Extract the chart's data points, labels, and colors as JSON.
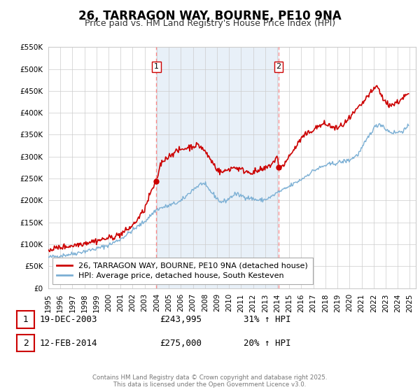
{
  "title": "26, TARRAGON WAY, BOURNE, PE10 9NA",
  "subtitle": "Price paid vs. HM Land Registry's House Price Index (HPI)",
  "ylim": [
    0,
    550000
  ],
  "xlim_start": 1995.0,
  "xlim_end": 2025.5,
  "yticks": [
    0,
    50000,
    100000,
    150000,
    200000,
    250000,
    300000,
    350000,
    400000,
    450000,
    500000,
    550000
  ],
  "ytick_labels": [
    "£0",
    "£50K",
    "£100K",
    "£150K",
    "£200K",
    "£250K",
    "£300K",
    "£350K",
    "£400K",
    "£450K",
    "£500K",
    "£550K"
  ],
  "xticks": [
    1995,
    1996,
    1997,
    1998,
    1999,
    2000,
    2001,
    2002,
    2003,
    2004,
    2005,
    2006,
    2007,
    2008,
    2009,
    2010,
    2011,
    2012,
    2013,
    2014,
    2015,
    2016,
    2017,
    2018,
    2019,
    2020,
    2021,
    2022,
    2023,
    2024,
    2025
  ],
  "sale1_x": 2003.97,
  "sale1_y": 243995,
  "sale1_label": "1",
  "sale1_date": "19-DEC-2003",
  "sale1_price": "£243,995",
  "sale1_hpi": "31% ↑ HPI",
  "sale2_x": 2014.12,
  "sale2_y": 275000,
  "sale2_label": "2",
  "sale2_date": "12-FEB-2014",
  "sale2_price": "£275,000",
  "sale2_hpi": "20% ↑ HPI",
  "line1_color": "#cc0000",
  "line2_color": "#7bafd4",
  "shading_color": "#ddeeff",
  "vline_color": "#ff8888",
  "grid_color": "#cccccc",
  "background_color": "#ffffff",
  "legend1_label": "26, TARRAGON WAY, BOURNE, PE10 9NA (detached house)",
  "legend2_label": "HPI: Average price, detached house, South Kesteven",
  "footnote": "Contains HM Land Registry data © Crown copyright and database right 2025.\nThis data is licensed under the Open Government Licence v3.0.",
  "title_fontsize": 12,
  "subtitle_fontsize": 9,
  "tick_fontsize": 7.5,
  "legend_fontsize": 8
}
